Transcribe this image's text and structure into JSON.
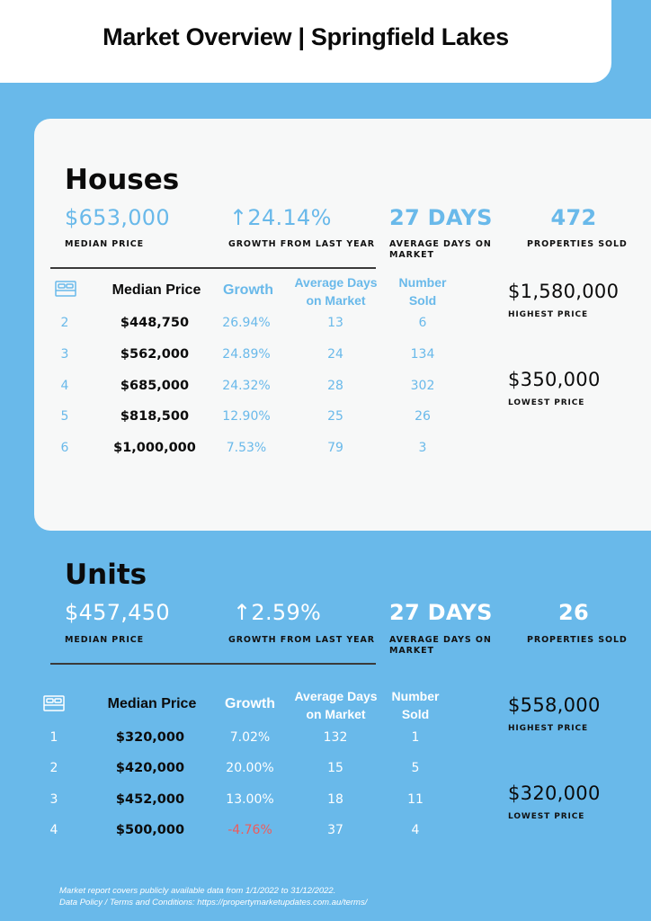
{
  "header": {
    "title": "Market Overview | Springfield Lakes"
  },
  "houses": {
    "title": "Houses",
    "stats": {
      "median": {
        "value": "$653,000",
        "label": "MEDIAN PRICE"
      },
      "growth": {
        "value": "↑24.14%",
        "label": "GROWTH FROM LAST YEAR"
      },
      "days": {
        "value": "27 DAYS",
        "label": "AVERAGE DAYS ON MARKET"
      },
      "sold": {
        "value": "472",
        "label": "PROPERTIES SOLD"
      }
    },
    "table": {
      "headers": {
        "median": "Median Price",
        "growth": "Growth",
        "days": "Average Days on Market",
        "sold": "Number Sold"
      },
      "rows": [
        {
          "beds": "2",
          "price": "$448,750",
          "growth": "26.94%",
          "days": "13",
          "sold": "6"
        },
        {
          "beds": "3",
          "price": "$562,000",
          "growth": "24.89%",
          "days": "24",
          "sold": "134"
        },
        {
          "beds": "4",
          "price": "$685,000",
          "growth": "24.32%",
          "days": "28",
          "sold": "302"
        },
        {
          "beds": "5",
          "price": "$818,500",
          "growth": "12.90%",
          "days": "25",
          "sold": "26"
        },
        {
          "beds": "6",
          "price": "$1,000,000",
          "growth": "7.53%",
          "days": "79",
          "sold": "3"
        }
      ]
    },
    "highest": {
      "value": "$1,580,000",
      "label": "HIGHEST PRICE"
    },
    "lowest": {
      "value": "$350,000",
      "label": "LOWEST PRICE"
    }
  },
  "units": {
    "title": "Units",
    "stats": {
      "median": {
        "value": "$457,450",
        "label": "MEDIAN PRICE"
      },
      "growth": {
        "value": "↑2.59%",
        "label": "GROWTH FROM LAST YEAR"
      },
      "days": {
        "value": "27 DAYS",
        "label": "AVERAGE DAYS ON MARKET"
      },
      "sold": {
        "value": "26",
        "label": "PROPERTIES SOLD"
      }
    },
    "table": {
      "headers": {
        "median": "Median Price",
        "growth": "Growth",
        "days": "Average Days on Market",
        "sold": "Number Sold"
      },
      "rows": [
        {
          "beds": "1",
          "price": "$320,000",
          "growth": "7.02%",
          "days": "132",
          "sold": "1"
        },
        {
          "beds": "2",
          "price": "$420,000",
          "growth": "20.00%",
          "days": "15",
          "sold": "5"
        },
        {
          "beds": "3",
          "price": "$452,000",
          "growth": "13.00%",
          "days": "18",
          "sold": "11"
        },
        {
          "beds": "4",
          "price": "$500,000",
          "growth": "-4.76%",
          "days": "37",
          "sold": "4"
        }
      ]
    },
    "highest": {
      "value": "$558,000",
      "label": "HIGHEST PRICE"
    },
    "lowest": {
      "value": "$320,000",
      "label": "LOWEST PRICE"
    }
  },
  "footer": {
    "line1": "Market report covers publicly available data from 1/1/2022 to 31/12/2022.",
    "line2": "Data Policy / Terms and Conditions: https://propertymarketupdates.com.au/terms/"
  },
  "colors": {
    "accent": "#69b9ea",
    "card": "#f7f8f8",
    "negative": "#ef5b5b",
    "text": "#0b0b0b"
  },
  "icons": {
    "bed": "bed-icon"
  }
}
